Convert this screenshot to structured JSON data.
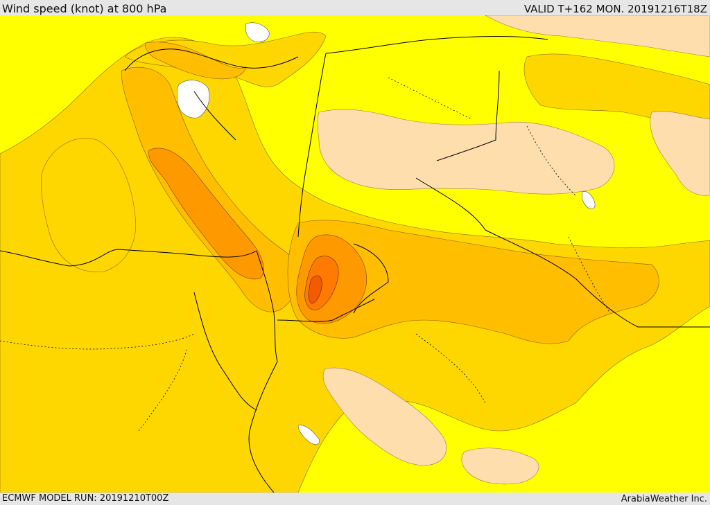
{
  "header": {
    "title": "Wind speed (knot) at 800 hPa",
    "valid": "VALID T+162 MON. 20191216T18Z"
  },
  "footer": {
    "model_run": "ECMWF MODEL RUN: 20191210T00Z",
    "credit": "ArabiaWeather Inc."
  },
  "colors": {
    "background": "#ffff00",
    "band_gold": "#ffd700",
    "band_orange_light": "#ffbf00",
    "band_orange": "#ff9900",
    "band_orange_dark": "#ff7a00",
    "band_red": "#f45a00",
    "calm_tan": "#ffdead",
    "still_white": "#ffffff",
    "border_line": "#000000"
  }
}
